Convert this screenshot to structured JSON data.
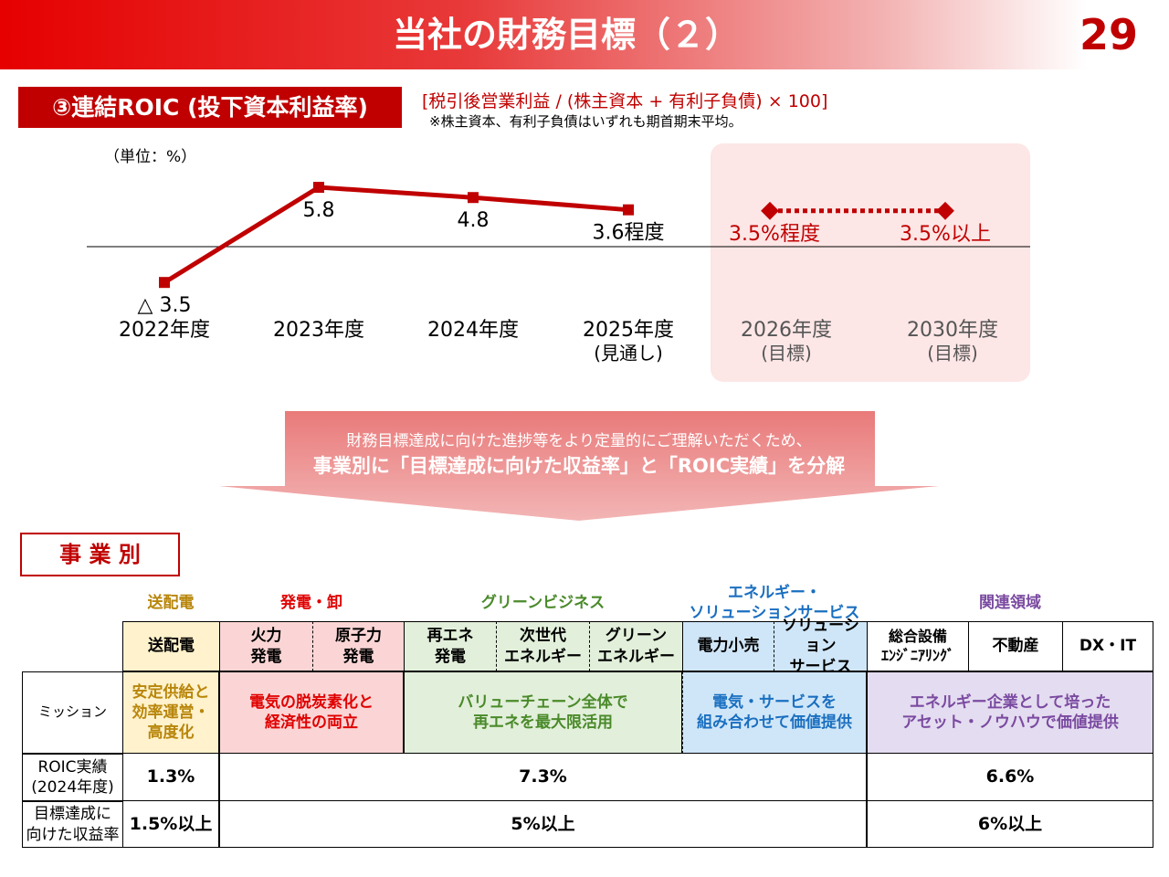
{
  "header": {
    "title": "当社の財務目標（２）",
    "page": "29"
  },
  "roic": {
    "label": "③連結ROIC (投下資本利益率)",
    "formula": "[税引後営業利益 / (株主資本 + 有利子負債) × 100]",
    "note": "※株主資本、有利子負債はいずれも期首期末平均。",
    "unit": "（単位：%）"
  },
  "chart_data": {
    "type": "line",
    "categories": [
      "2022年度",
      "2023年度",
      "2024年度",
      "2025年度",
      "2026年度",
      "2030年度"
    ],
    "sublabels": [
      null,
      null,
      null,
      "(見通し)",
      "(目標)",
      "(目標)"
    ],
    "series": [
      {
        "color": "#c00000",
        "style": "solid",
        "values": [
          -3.5,
          5.8,
          4.8,
          3.6,
          null,
          null
        ],
        "value_labels": [
          "△ 3.5",
          "5.8",
          "4.8",
          "3.6程度",
          null,
          null
        ]
      },
      {
        "color": "#c00000",
        "style": "dotted",
        "values": [
          null,
          null,
          null,
          null,
          3.5,
          3.5
        ],
        "value_labels": [
          null,
          null,
          null,
          null,
          "3.5%程度",
          "3.5%以上"
        ]
      }
    ],
    "ylim": [
      -5,
      7
    ]
  },
  "banner": {
    "line1": "財務目標達成に向けた進捗等をより定量的にご理解いただくため、",
    "line2": "事業別に「目標達成に向けた収益率」と「ROIC実績」を分解"
  },
  "section": "事 業 別",
  "table": {
    "groups": [
      "送配電",
      "発電・卸",
      "グリーンビジネス",
      "エネルギー・\nソリューションサービス",
      "関連領域"
    ],
    "columns": [
      "送配電",
      "火力\n発電",
      "原子力\n発電",
      "再エネ\n発電",
      "次世代\nエネルギー",
      "グリーン\nエネルギー",
      "電力小売",
      "ソリューション\nサービス",
      "総合設備\nｴﾝｼﾞﾆｱﾘﾝｸﾞ",
      "不動産",
      "DX・IT"
    ],
    "rows": [
      {
        "label": "ミッション",
        "cells": [
          "安定供給と\n効率運営・\n高度化",
          "電気の脱炭素化と\n経済性の両立",
          "バリューチェーン全体で\n再エネを最大限活用",
          "電気・サービスを\n組み合わせて価値提供",
          "エネルギー企業として培った\nアセット・ノウハウで価値提供"
        ]
      },
      {
        "label": "ROIC実績\n(2024年度)",
        "cells": [
          "1.3%",
          "7.3%",
          "6.6%"
        ]
      },
      {
        "label": "目標達成に\n向けた収益率",
        "cells": [
          "1.5%以上",
          "5%以上",
          "6%以上"
        ]
      }
    ]
  }
}
